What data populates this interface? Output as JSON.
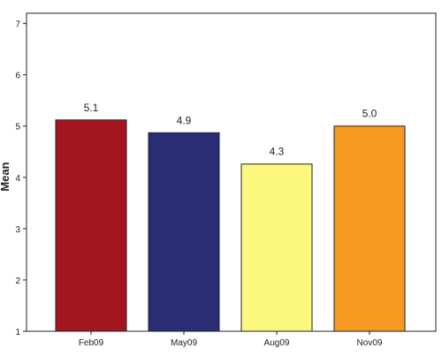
{
  "chart_data": {
    "type": "bar",
    "y_label": "Mean",
    "categories": [
      "Feb09",
      "May09",
      "Aug09",
      "Nov09"
    ],
    "values": [
      5.12,
      4.87,
      4.26,
      5.0
    ],
    "value_labels": [
      "5.1",
      "4.9",
      "4.3",
      "5.0"
    ],
    "colors": [
      "#a3161f",
      "#2b2d72",
      "#fbf87d",
      "#f79a21"
    ],
    "ylim": [
      1,
      7.2
    ],
    "yticks": [
      1,
      2,
      3,
      4,
      5,
      6,
      7
    ]
  }
}
